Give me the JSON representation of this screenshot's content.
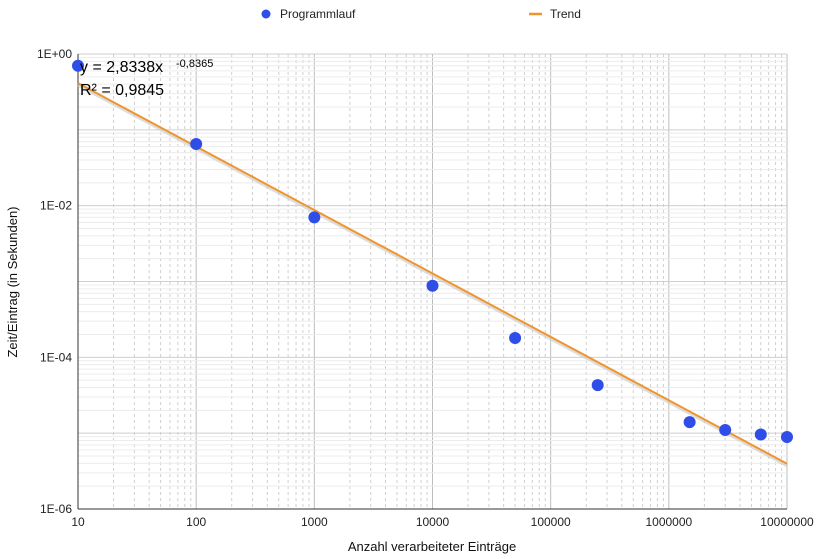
{
  "chart_data": {
    "type": "scatter",
    "x_scale": "log",
    "y_scale": "log",
    "xlim": [
      10,
      10000000
    ],
    "ylim": [
      1e-06,
      1
    ],
    "xlabel": "Anzahl verarbeiteter Einträge",
    "ylabel": "Zeit/Eintrag (in Sekunden)",
    "x_ticks": [
      "10",
      "100",
      "1000",
      "10000",
      "100000",
      "1000000",
      "10000000"
    ],
    "y_ticks": [
      "1E+00",
      "1E-02",
      "1E-04",
      "1E-06"
    ],
    "grid": "log-major-and-minor",
    "legend": {
      "placement": "top",
      "entries": [
        "Programmlauf",
        "Trend"
      ]
    },
    "series": [
      {
        "name": "Programmlauf",
        "kind": "points",
        "color": "#2f4ee8",
        "x": [
          10,
          100,
          1000,
          10000,
          50000,
          250000,
          1500000,
          3000000,
          6000000,
          10000000
        ],
        "y": [
          0.7,
          0.065,
          0.007,
          0.00088,
          0.00018,
          4.3e-05,
          1.4e-05,
          1.1e-05,
          9.6e-06,
          8.9e-06
        ]
      },
      {
        "name": "Trend",
        "kind": "trendline",
        "color": "#f0952c",
        "coefficient": 2.8338,
        "exponent": -0.8365,
        "r_squared": 0.9845
      }
    ],
    "annotations": {
      "equation_base": "y = 2,8338x",
      "equation_exponent": "-0,8365",
      "r2": "R² = 0,9845"
    }
  }
}
